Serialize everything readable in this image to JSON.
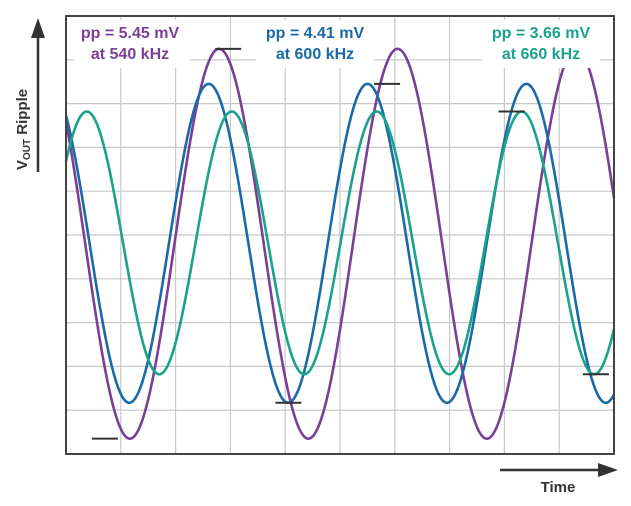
{
  "chart_data": {
    "type": "line",
    "title": "",
    "xlabel": "Time",
    "ylabel_main": "V",
    "ylabel_sub": "OUT",
    "ylabel_rest": " Ripple",
    "xlim": [
      0,
      1
    ],
    "ylim": [
      0,
      1
    ],
    "grid": true,
    "series": [
      {
        "name": "540 kHz",
        "color": "#7b3f98",
        "label_line1": "pp = 5.45 mV",
        "label_line2": "at 540 kHz",
        "cycles": 3.07,
        "phase": 2.465,
        "center": 0.48,
        "amplitude": 0.445,
        "peak_marker_t": 0.296,
        "trough_marker_t": 0.071
      },
      {
        "name": "600 kHz",
        "color": "#1a6aa8",
        "label_line1": "pp = 4.41 mV",
        "label_line2": "at 600 kHz",
        "cycles": 3.45,
        "phase": 2.21,
        "center": 0.481,
        "amplitude": 0.364,
        "peak_marker_t": 0.586,
        "trough_marker_t": 0.406
      },
      {
        "name": "660 kHz",
        "color": "#1aa38a",
        "label_line1": "pp = 3.66 mV",
        "label_line2": "at 660 kHz",
        "cycles": 3.78,
        "phase": 0.67,
        "center": 0.482,
        "amplitude": 0.3,
        "peak_marker_t": 0.813,
        "trough_marker_t": 0.967
      }
    ]
  }
}
